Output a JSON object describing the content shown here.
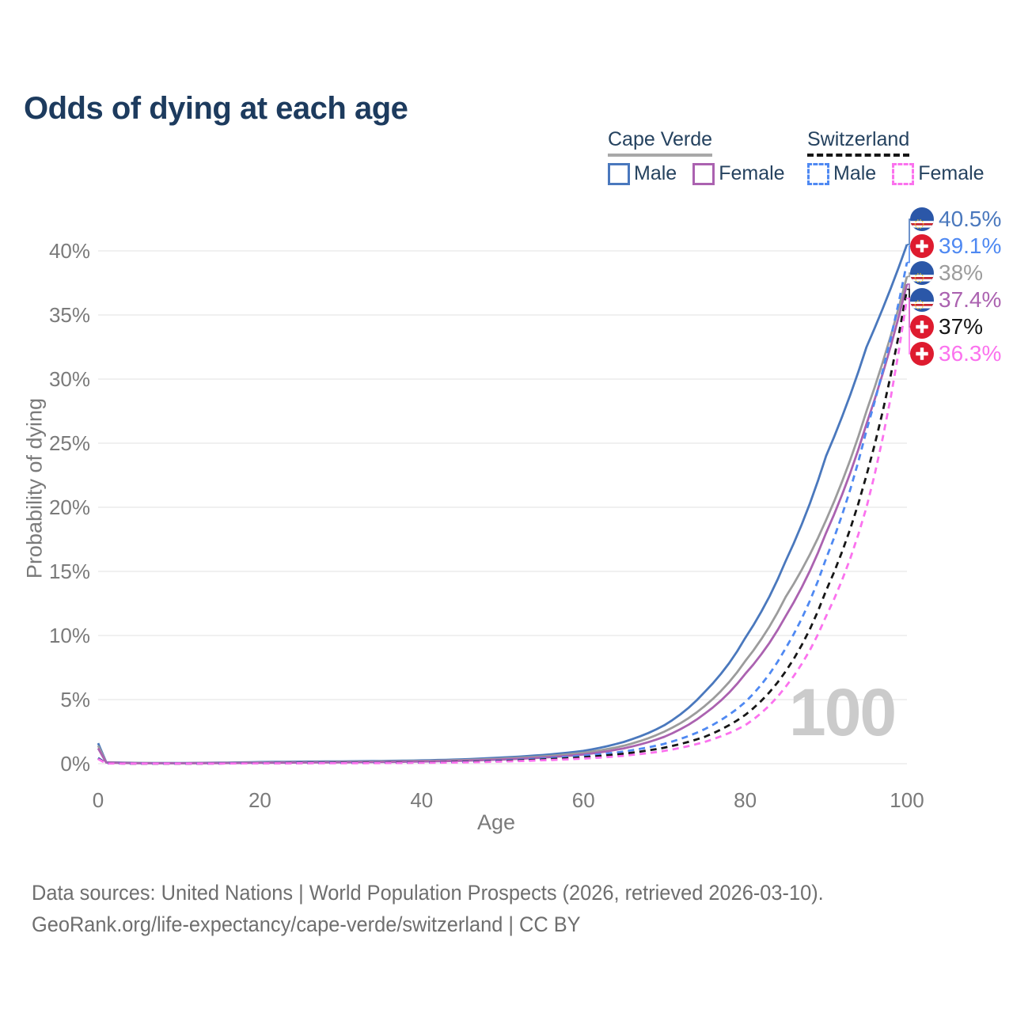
{
  "title": "Odds of dying at each age",
  "legend": {
    "cape_verde": {
      "label": "Cape Verde",
      "male_label": "Male",
      "female_label": "Female"
    },
    "switzerland": {
      "label": "Switzerland",
      "male_label": "Male",
      "female_label": "Female"
    }
  },
  "colors": {
    "cv_male": "#4a78bd",
    "cv_both": "#9c9c9c",
    "cv_female": "#ab62b0",
    "ch_male": "#4f89f2",
    "ch_both": "#161616",
    "ch_female": "#fb72ee",
    "title_text": "#1d3b5e",
    "axis_text": "#7a7a7a",
    "gridline": "#ececec",
    "watermark": "#cbcbcb"
  },
  "chart_data": {
    "type": "line",
    "title": "Odds of dying at each age",
    "xlabel": "Age",
    "ylabel": "Probability of dying",
    "xlim": [
      0,
      100
    ],
    "ylim": [
      0,
      40
    ],
    "x_ticks": [
      0,
      20,
      40,
      60,
      80,
      100
    ],
    "y_ticks": [
      0,
      5,
      10,
      15,
      20,
      25,
      30,
      35,
      40
    ],
    "y_tick_suffix": "%",
    "grid": "horizontal",
    "legend_position": "top-right",
    "watermark": "100",
    "ages": [
      0,
      1,
      5,
      10,
      15,
      20,
      25,
      30,
      35,
      40,
      45,
      50,
      55,
      60,
      65,
      70,
      75,
      80,
      85,
      90,
      95,
      100
    ],
    "series": [
      {
        "name": "Cape Verde male",
        "country": "Cape Verde",
        "group": "Male",
        "color": "#4a78bd",
        "dashed": false,
        "end_value": 40.5,
        "end_value_label": "40.5%",
        "values": [
          1.6,
          0.12,
          0.06,
          0.05,
          0.08,
          0.13,
          0.16,
          0.18,
          0.21,
          0.26,
          0.34,
          0.48,
          0.68,
          1.0,
          1.7,
          3.0,
          5.6,
          9.8,
          15.8,
          24.0,
          32.5,
          40.5
        ]
      },
      {
        "name": "Cape Verde both sexes",
        "country": "Cape Verde",
        "group": "Both sexes",
        "color": "#9c9c9c",
        "dashed": false,
        "end_value": 38,
        "end_value_label": "38%",
        "values": [
          1.4,
          0.1,
          0.05,
          0.04,
          0.06,
          0.1,
          0.12,
          0.14,
          0.17,
          0.21,
          0.28,
          0.4,
          0.57,
          0.85,
          1.4,
          2.5,
          4.5,
          8.0,
          13.0,
          19.0,
          27.5,
          38.0
        ]
      },
      {
        "name": "Cape Verde female",
        "country": "Cape Verde",
        "group": "Female",
        "color": "#ab62b0",
        "dashed": false,
        "end_value": 37.4,
        "end_value_label": "37.4%",
        "values": [
          1.2,
          0.09,
          0.04,
          0.035,
          0.05,
          0.07,
          0.09,
          0.11,
          0.13,
          0.17,
          0.23,
          0.33,
          0.48,
          0.72,
          1.2,
          2.1,
          3.9,
          7.0,
          11.5,
          18.0,
          26.5,
          37.4
        ]
      },
      {
        "name": "Switzerland male",
        "country": "Switzerland",
        "group": "Male",
        "color": "#4f89f2",
        "dashed": true,
        "end_value": 39.1,
        "end_value_label": "39.1%",
        "values": [
          0.45,
          0.03,
          0.01,
          0.01,
          0.02,
          0.05,
          0.06,
          0.07,
          0.08,
          0.1,
          0.15,
          0.25,
          0.4,
          0.62,
          0.95,
          1.55,
          2.7,
          4.8,
          9.0,
          16.0,
          26.0,
          39.1
        ]
      },
      {
        "name": "Switzerland both sexes",
        "country": "Switzerland",
        "group": "Both sexes",
        "color": "#161616",
        "dashed": true,
        "end_value": 37,
        "end_value_label": "37%",
        "values": [
          0.4,
          0.03,
          0.01,
          0.01,
          0.02,
          0.04,
          0.05,
          0.06,
          0.07,
          0.09,
          0.13,
          0.21,
          0.33,
          0.5,
          0.78,
          1.25,
          2.1,
          3.8,
          7.2,
          13.5,
          22.5,
          37.0
        ]
      },
      {
        "name": "Switzerland female",
        "country": "Switzerland",
        "group": "Female",
        "color": "#fb72ee",
        "dashed": true,
        "end_value": 36.3,
        "end_value_label": "36.3%",
        "values": [
          0.37,
          0.02,
          0.01,
          0.01,
          0.015,
          0.03,
          0.035,
          0.04,
          0.05,
          0.07,
          0.1,
          0.17,
          0.27,
          0.4,
          0.62,
          1.0,
          1.7,
          3.0,
          6.0,
          11.5,
          20.0,
          36.3
        ]
      }
    ]
  },
  "end_labels": [
    {
      "value": "40.5%",
      "series_index": 0,
      "flag": "cape-verde",
      "color": "#4a78bd"
    },
    {
      "value": "39.1%",
      "series_index": 3,
      "flag": "switzerland",
      "color": "#4f89f2"
    },
    {
      "value": "38%",
      "series_index": 1,
      "flag": "cape-verde",
      "color": "#9c9c9c"
    },
    {
      "value": "37.4%",
      "series_index": 2,
      "flag": "cape-verde",
      "color": "#ab62b0"
    },
    {
      "value": "37%",
      "series_index": 4,
      "flag": "switzerland",
      "color": "#161616"
    },
    {
      "value": "36.3%",
      "series_index": 5,
      "flag": "switzerland",
      "color": "#fb72ee"
    }
  ],
  "footer": {
    "line1": "Data sources: United Nations | World Population Prospects (2026, retrieved 2026-03-10).",
    "line2": "GeoRank.org/life-expectancy/cape-verde/switzerland | CC BY"
  }
}
